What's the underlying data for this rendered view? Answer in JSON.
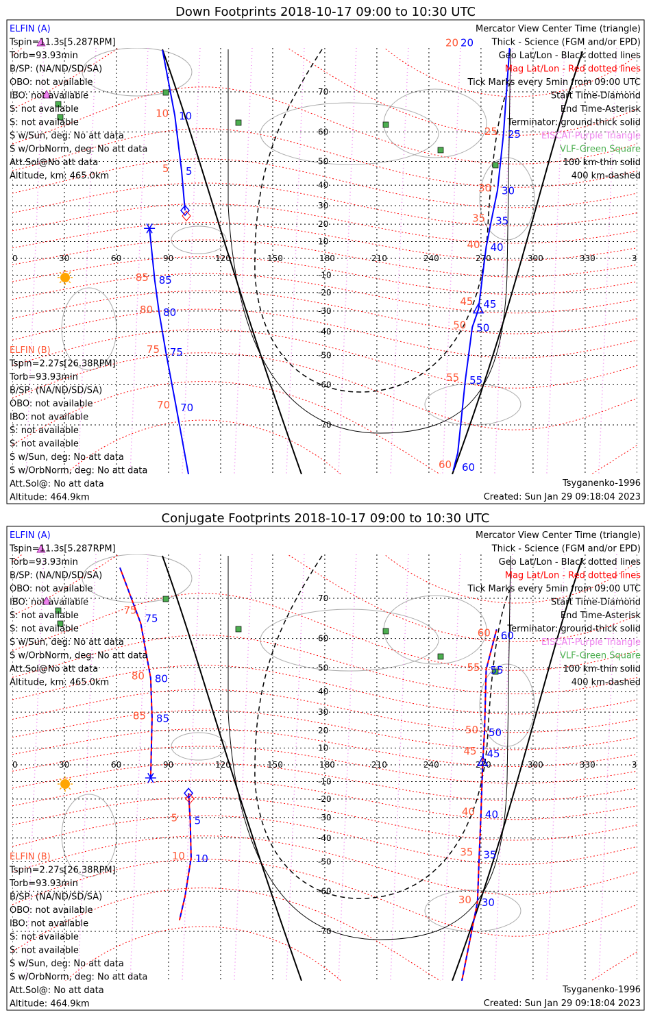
{
  "colors": {
    "track": "#0000ff",
    "tick_label_a": "#0000ff",
    "tick_label_b": "#ff5533",
    "mag": "#ff0000",
    "geo": "#000000",
    "eiscat": "#ee82ee",
    "vlf": "#4caf50",
    "sun": "#ffa500",
    "coast": "#aaaaaa"
  },
  "legend_right": [
    {
      "text": "Mercator View Center Time (triangle)",
      "color": "#000000"
    },
    {
      "text": "Thick - Science (FGM and/or EPD)",
      "color": "#000000"
    },
    {
      "text": "Geo Lat/Lon - Black dotted lines",
      "color": "#000000"
    },
    {
      "text": "Mag Lat/Lon - Red dotted lines",
      "color": "#ff0000"
    },
    {
      "text": "Tick Marks every 5min from 09:00 UTC",
      "color": "#000000"
    },
    {
      "text": "Start Time-Diamond",
      "color": "#000000"
    },
    {
      "text": "End Time-Asterisk",
      "color": "#000000"
    },
    {
      "text": "Terminator: ground-thick solid",
      "color": "#000000"
    },
    {
      "text": "EISCAT-Purple Triangle",
      "color": "#ee82ee"
    },
    {
      "text": "VLF-Green Square",
      "color": "#4caf50"
    },
    {
      "text": "100 km-thin solid",
      "color": "#000000"
    },
    {
      "text": "400 km-dashed",
      "color": "#000000"
    }
  ],
  "elfin_a": {
    "title": "ELFIN (A)",
    "lines": [
      "Tspin=11.3s[5.287RPM]",
      "Torb=93.93min",
      "B/SP: (NA/ND/SD/SA)",
      "OBO: not available",
      "IBO: not available",
      "S: not available",
      "S: not available",
      "S w/Sun, deg: No att data",
      "S w/OrbNorm, deg: No att data",
      "Att.Sol@No att data",
      "Altitude, km: 465.0km"
    ]
  },
  "elfin_b": {
    "title": "ELFIN (B)",
    "lines": [
      "Tspin=2.27s[26.38RPM]",
      "Torb=93.93min",
      "B/SP: (NA/ND/SD/SA)",
      "OBO: not available",
      "IBO: not available",
      "S: not available",
      "S: not available",
      "S w/Sun, deg: No att data",
      "S w/OrbNorm, deg: No att data",
      "Att.Sol@: No att data",
      "Altitude: 464.9km"
    ]
  },
  "model": "Tsyganenko-1996",
  "created": "Created: Sun Jan 29 09:18:04 2023",
  "chart_data": [
    {
      "type": "map-tracks",
      "title": "Down Footprints 2018-10-17 09:00 to 10:30 UTC",
      "projection": "mercator",
      "lon_ticks": [
        0,
        30,
        60,
        90,
        120,
        150,
        180,
        210,
        240,
        270,
        300,
        330,
        360
      ],
      "lat_ticks": [
        70,
        60,
        50,
        40,
        30,
        20,
        10,
        0,
        -10,
        -20,
        -30,
        -40,
        -50,
        -60,
        -70
      ],
      "tracks": [
        {
          "name": "ELFIN A",
          "style": "solid",
          "segments": [
            [
              [
                86.5,
                77
              ],
              [
                93.6,
                64.6
              ],
              [
                97.5,
                46.3
              ],
              [
                99.5,
                27.5
              ]
            ],
            [
              [
                79,
                17.6
              ],
              [
                82,
                -12.6
              ],
              [
                84.5,
                -30.3
              ],
              [
                88.4,
                -48.5
              ],
              [
                94.4,
                -66
              ],
              [
                101.5,
                -78
              ]
            ]
          ],
          "start": [
            99.5,
            27.5
          ],
          "end": [
            79,
            17.6
          ],
          "ticks": [
            {
              "label": "10",
              "lon": 93.6,
              "lat": 64.6
            },
            {
              "label": "5",
              "lon": 97.5,
              "lat": 46.3
            },
            {
              "label": "85",
              "lon": 82,
              "lat": -12.6
            },
            {
              "label": "80",
              "lon": 84.5,
              "lat": -30.3
            },
            {
              "label": "75",
              "lon": 88.4,
              "lat": -48.5
            },
            {
              "label": "70",
              "lon": 94.4,
              "lat": -66
            }
          ]
        },
        {
          "name": "ELFIN B",
          "style": "solid",
          "segments": [
            [
              [
                254,
                -77.5
              ],
              [
                256.6,
                -75
              ],
              [
                261,
                -58.5
              ],
              [
                265,
                -38
              ],
              [
                268.5,
                -29.2
              ],
              [
                273,
                6.9
              ],
              [
                276,
                22.2
              ],
              [
                279.5,
                37.6
              ],
              [
                283,
                59.5
              ],
              [
                287,
                78.9
              ]
            ]
          ],
          "center": [
            268.5,
            -29.2
          ],
          "ticks": [
            {
              "label": "20",
              "lon": 287,
              "lat": 78
            },
            {
              "label": "25",
              "lon": 283,
              "lat": 59.5
            },
            {
              "label": "30",
              "lon": 279.5,
              "lat": 37.6
            },
            {
              "label": "35",
              "lon": 276,
              "lat": 22.2
            },
            {
              "label": "40",
              "lon": 273,
              "lat": 6.9
            },
            {
              "label": "45",
              "lon": 269,
              "lat": -26.1
            },
            {
              "label": "50",
              "lon": 265,
              "lat": -38
            },
            {
              "label": "55",
              "lon": 261,
              "lat": -58.5
            },
            {
              "label": "60",
              "lon": 256.6,
              "lat": -77
            }
          ]
        }
      ]
    },
    {
      "type": "map-tracks",
      "title": "Conjugate Footprints 2018-10-17 09:00 to 10:30 UTC",
      "projection": "mercator",
      "lon_ticks": [
        0,
        30,
        60,
        90,
        120,
        150,
        180,
        210,
        240,
        270,
        300,
        330,
        360
      ],
      "lat_ticks": [
        70,
        60,
        50,
        40,
        30,
        20,
        10,
        0,
        -10,
        -20,
        -30,
        -40,
        -50,
        -60,
        -70
      ],
      "tracks": [
        {
          "name": "ELFIN A",
          "style": "dashed",
          "segments": [
            [
              [
                62,
                75.4
              ],
              [
                74,
                64.2
              ],
              [
                79.7,
                45.9
              ],
              [
                80.5,
                27
              ],
              [
                79.7,
                -7.8
              ]
            ],
            [
              [
                101.5,
                -16.7
              ],
              [
                102.5,
                -31.3
              ],
              [
                103,
                -48.5
              ],
              [
                99.5,
                -61.5
              ],
              [
                96.3,
                -67.6
              ]
            ]
          ],
          "start": [
            101.5,
            -16.7
          ],
          "end": [
            79.7,
            -7.8
          ],
          "ticks": [
            {
              "label": "75",
              "lon": 74,
              "lat": 64.2
            },
            {
              "label": "80",
              "lon": 79.7,
              "lat": 45.9
            },
            {
              "label": "85",
              "lon": 80.5,
              "lat": 27
            },
            {
              "label": "5",
              "lon": 102.5,
              "lat": -31.3
            },
            {
              "label": "10",
              "lon": 103,
              "lat": -48.5
            }
          ]
        },
        {
          "name": "ELFIN B",
          "style": "dashed",
          "segments": [
            [
              [
                258,
                -79
              ],
              [
                268,
                -63
              ],
              [
                269,
                -47
              ],
              [
                270,
                -28
              ],
              [
                271,
                1.6
              ],
              [
                272,
                19.2
              ],
              [
                273,
                49.4
              ],
              [
                279,
                62.6
              ]
            ]
          ],
          "center": [
            271,
            1.6
          ],
          "ticks": [
            {
              "label": "60",
              "lon": 279,
              "lat": 61
            },
            {
              "label": "55",
              "lon": 273,
              "lat": 49.4
            },
            {
              "label": "50",
              "lon": 272,
              "lat": 19.2
            },
            {
              "label": "45",
              "lon": 271,
              "lat": 2
            },
            {
              "label": "40",
              "lon": 270,
              "lat": -28
            },
            {
              "label": "35",
              "lon": 269,
              "lat": -47
            },
            {
              "label": "30",
              "lon": 268,
              "lat": -63
            }
          ]
        }
      ]
    }
  ]
}
